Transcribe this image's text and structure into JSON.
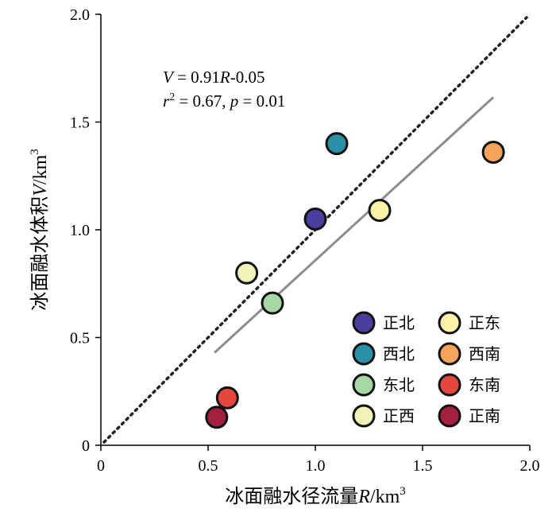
{
  "chart_data": {
    "type": "scatter",
    "xlabel": "冰面融水径流量",
    "xlabel_var": "R",
    "xlabel_unit": "/km",
    "xlabel_sup": "3",
    "ylabel": "冰面融水体积",
    "ylabel_var": "V",
    "ylabel_unit": "/km",
    "ylabel_sup": "3",
    "xlim": [
      0,
      2.0
    ],
    "ylim": [
      0,
      2.0
    ],
    "x_ticks": [
      {
        "value": 0,
        "label": "0"
      },
      {
        "value": 0.5,
        "label": "0.5"
      },
      {
        "value": 1.0,
        "label": "1.0"
      },
      {
        "value": 1.5,
        "label": "1.5"
      },
      {
        "value": 2.0,
        "label": "2.0"
      }
    ],
    "y_ticks": [
      {
        "value": 0,
        "label": "0"
      },
      {
        "value": 0.5,
        "label": "0.5"
      },
      {
        "value": 1.0,
        "label": "1.0"
      },
      {
        "value": 1.5,
        "label": "1.5"
      },
      {
        "value": 2.0,
        "label": "2.0"
      }
    ],
    "annotation": {
      "line1": {
        "var": "V",
        "rest1": " = 0.91",
        "var2": "R",
        "rest2": "-0.05"
      },
      "line2": {
        "var": "r",
        "sup": "2",
        "rest1": " = 0.67, ",
        "var2": "p",
        "rest2": " = 0.01"
      }
    },
    "one_to_one_line": {
      "from": [
        0,
        0
      ],
      "to": [
        2.0,
        2.0
      ],
      "style": "dotted",
      "color": "#222222"
    },
    "regression_line": {
      "from": [
        0.53,
        0.43
      ],
      "to": [
        1.83,
        1.615
      ],
      "color": "#8c8c8c"
    },
    "legend_position": "bottom-right",
    "series": [
      {
        "name": "正北",
        "x": 1.0,
        "y": 1.05,
        "color": "#4a3f9e"
      },
      {
        "name": "西北",
        "x": 1.1,
        "y": 1.4,
        "color": "#2b8fa8"
      },
      {
        "name": "东北",
        "x": 0.8,
        "y": 0.66,
        "color": "#a5d8a5"
      },
      {
        "name": "正西",
        "x": 0.68,
        "y": 0.8,
        "color": "#f1f2b8"
      },
      {
        "name": "正东",
        "x": 1.3,
        "y": 1.09,
        "color": "#fcf3a8"
      },
      {
        "name": "西南",
        "x": 1.83,
        "y": 1.36,
        "color": "#f6a35a"
      },
      {
        "name": "东南",
        "x": 0.59,
        "y": 0.22,
        "color": "#e5473e"
      },
      {
        "name": "正南",
        "x": 0.54,
        "y": 0.13,
        "color": "#a3213f"
      }
    ]
  }
}
